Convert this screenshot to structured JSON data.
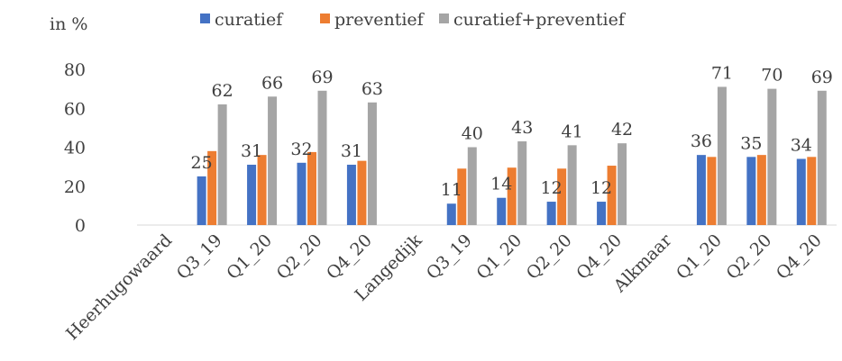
{
  "chart_data": {
    "type": "bar",
    "ylabel": "in %",
    "ylim": [
      0,
      80
    ],
    "yticks": [
      0,
      20,
      40,
      60,
      80
    ],
    "grid": false,
    "legend_position": "top",
    "categories": [
      "Heerhugowaard",
      "Q3_19",
      "Q1_20",
      "Q2_20",
      "Q4_20",
      "Langedijk",
      "Q3_19",
      "Q1_20",
      "Q2_20",
      "Q4_20",
      "Alkmaar",
      "Q1_20",
      "Q2_20",
      "Q4_20"
    ],
    "series": [
      {
        "name": "curatief",
        "color": "#4472c4",
        "values": [
          null,
          25,
          31,
          32,
          31,
          null,
          11,
          14,
          12,
          12,
          null,
          36,
          35,
          34
        ]
      },
      {
        "name": "preventief",
        "color": "#ed7d31",
        "values": [
          null,
          38,
          36,
          37.5,
          33,
          null,
          29,
          29.5,
          29,
          30.5,
          null,
          35,
          36,
          35
        ]
      },
      {
        "name": "curatief+preventief",
        "color": "#a5a5a5",
        "values": [
          null,
          62,
          66,
          69,
          63,
          null,
          40,
          43,
          41,
          42,
          null,
          71,
          70,
          69
        ]
      }
    ],
    "data_labels": {
      "curatief": [
        null,
        "25",
        "31",
        "32",
        "31",
        null,
        "11",
        "14",
        "12",
        "12",
        null,
        "36",
        "35",
        "34"
      ],
      "curatief+preventief": [
        null,
        "62",
        "66",
        "69",
        "63",
        null,
        "40",
        "43",
        "41",
        "42",
        null,
        "71",
        "70",
        "69"
      ]
    }
  }
}
